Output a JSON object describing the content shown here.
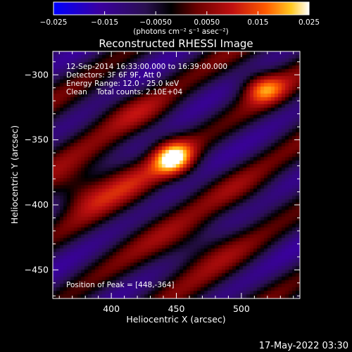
{
  "chart_data": {
    "type": "heatmap",
    "title": "Reconstructed RHESSI Image",
    "xlabel": "Heliocentric X (arcsec)",
    "ylabel": "Heliocentric Y (arcsec)",
    "xlim": [
      355,
      545
    ],
    "ylim": [
      -472,
      -282
    ],
    "x_ticks": [
      {
        "value": 400,
        "label": "400"
      },
      {
        "value": 450,
        "label": "450"
      },
      {
        "value": 500,
        "label": "500"
      }
    ],
    "y_ticks": [
      {
        "value": -300,
        "label": "−300"
      },
      {
        "value": -350,
        "label": "−350"
      },
      {
        "value": -400,
        "label": "−400"
      },
      {
        "value": -450,
        "label": "−450"
      }
    ],
    "colorbar": {
      "min": -0.025,
      "max": 0.025,
      "ticks": [
        {
          "value": -0.025,
          "label": "−0.025"
        },
        {
          "value": -0.015,
          "label": "−0.015"
        },
        {
          "value": -0.005,
          "label": "−0.0050"
        },
        {
          "value": 0.005,
          "label": "0.0050"
        },
        {
          "value": 0.015,
          "label": "0.015"
        },
        {
          "value": 0.025,
          "label": "0.025"
        }
      ],
      "unit_label": "(photons cm⁻² s⁻¹ asec⁻²)",
      "colors": [
        "#0000ff",
        "#3a00a0",
        "#2a1050",
        "#000000",
        "#6a0000",
        "#c01010",
        "#ff5a00",
        "#ffc820",
        "#ffffff"
      ]
    },
    "annotations": [
      "12-Sep-2014 16:33:00.000 to 16:39:00.000",
      "Detectors: 3F 6F 9F, Att 0",
      "Energy Range: 12.0 - 25.0 keV",
      "Clean    Total counts: 2.10E+04"
    ],
    "peak": {
      "x": 448,
      "y": -364,
      "value": 0.025,
      "label": "Position of Peak = [448,-364]"
    },
    "sources": [
      {
        "x": 448,
        "y": -364,
        "amp": 0.028,
        "sx": 7,
        "sy": 6
      },
      {
        "x": 517,
        "y": -310,
        "amp": 0.018,
        "sx": 7,
        "sy": 5
      },
      {
        "x": 375,
        "y": -390,
        "amp": 0.011,
        "sx": 10,
        "sy": 7
      },
      {
        "x": 410,
        "y": -380,
        "amp": 0.008,
        "sx": 12,
        "sy": 8
      },
      {
        "x": 420,
        "y": -328,
        "amp": 0.009,
        "sx": 14,
        "sy": 8
      },
      {
        "x": 470,
        "y": -432,
        "amp": 0.007,
        "sx": 16,
        "sy": 8
      },
      {
        "x": 500,
        "y": -390,
        "amp": 0.007,
        "sx": 14,
        "sy": 9
      }
    ],
    "colormap": "RHESSI heat (blue-black-red-yellow-white)"
  },
  "footer": {
    "date": "17-May-2022 03:30"
  }
}
